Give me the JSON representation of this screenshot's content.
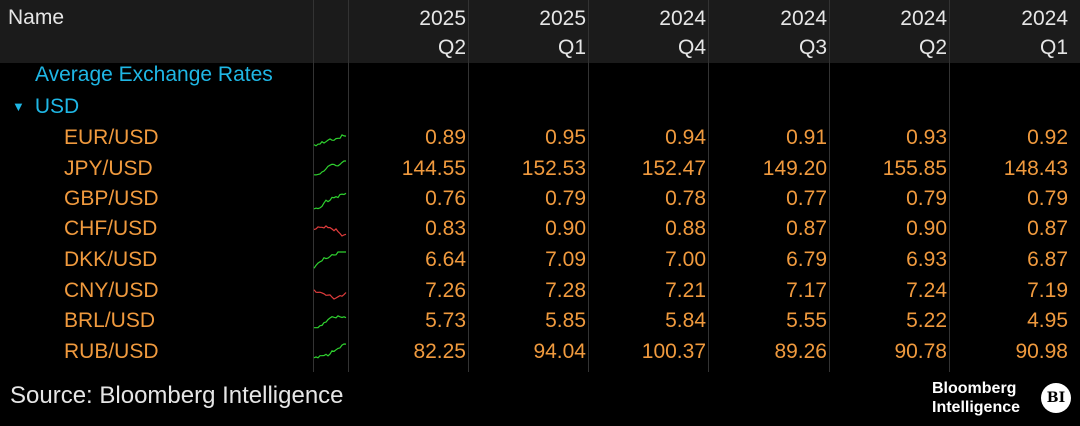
{
  "header": {
    "name_label": "Name",
    "columns": [
      {
        "year": "2025",
        "quarter": "Q2"
      },
      {
        "year": "2025",
        "quarter": "Q1"
      },
      {
        "year": "2024",
        "quarter": "Q4"
      },
      {
        "year": "2024",
        "quarter": "Q3"
      },
      {
        "year": "2024",
        "quarter": "Q2"
      },
      {
        "year": "2024",
        "quarter": "Q1"
      }
    ]
  },
  "section_title": "Average Exchange Rates",
  "group": {
    "expander": "▼",
    "label": "USD"
  },
  "rows": [
    {
      "pair": "EUR/USD",
      "spark_trend": "up",
      "values": [
        "0.89",
        "0.95",
        "0.94",
        "0.91",
        "0.93",
        "0.92"
      ]
    },
    {
      "pair": "JPY/USD",
      "spark_trend": "up",
      "values": [
        "144.55",
        "152.53",
        "152.47",
        "149.20",
        "155.85",
        "148.43"
      ]
    },
    {
      "pair": "GBP/USD",
      "spark_trend": "up",
      "values": [
        "0.76",
        "0.79",
        "0.78",
        "0.77",
        "0.79",
        "0.79"
      ]
    },
    {
      "pair": "CHF/USD",
      "spark_trend": "down",
      "values": [
        "0.83",
        "0.90",
        "0.88",
        "0.87",
        "0.90",
        "0.87"
      ]
    },
    {
      "pair": "DKK/USD",
      "spark_trend": "up",
      "values": [
        "6.64",
        "7.09",
        "7.00",
        "6.79",
        "6.93",
        "6.87"
      ]
    },
    {
      "pair": "CNY/USD",
      "spark_trend": "down",
      "values": [
        "7.26",
        "7.28",
        "7.21",
        "7.17",
        "7.24",
        "7.19"
      ]
    },
    {
      "pair": "BRL/USD",
      "spark_trend": "up",
      "values": [
        "5.73",
        "5.85",
        "5.84",
        "5.55",
        "5.22",
        "4.95"
      ]
    },
    {
      "pair": "RUB/USD",
      "spark_trend": "up",
      "values": [
        "82.25",
        "94.04",
        "100.37",
        "89.26",
        "90.78",
        "90.98"
      ]
    }
  ],
  "footer": {
    "source": "Source: Bloomberg Intelligence",
    "brand_line1": "Bloomberg",
    "brand_line2": "Intelligence",
    "badge": "BI"
  },
  "colors": {
    "background": "#000000",
    "header_bg": "#1b1b1b",
    "value_orange": "#f09a3e",
    "section_cyan": "#1fb7e5",
    "spark_up": "#2fd12f",
    "spark_down": "#e03c3c"
  }
}
